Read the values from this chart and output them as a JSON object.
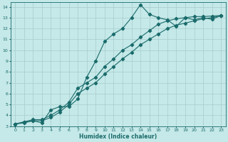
{
  "xlabel": "Humidex (Indice chaleur)",
  "bg_color": "#c5e8e8",
  "grid_color": "#a8cccc",
  "line_color": "#1a6b6b",
  "xlim": [
    -0.5,
    23.5
  ],
  "ylim": [
    3,
    14.4
  ],
  "xticks": [
    0,
    1,
    2,
    3,
    4,
    5,
    6,
    7,
    8,
    9,
    10,
    11,
    12,
    13,
    14,
    15,
    16,
    17,
    18,
    19,
    20,
    21,
    22,
    23
  ],
  "yticks": [
    3,
    4,
    5,
    6,
    7,
    8,
    9,
    10,
    11,
    12,
    13,
    14
  ],
  "line1_x": [
    0,
    1,
    2,
    3,
    4,
    5,
    6,
    7,
    8,
    9,
    10,
    11,
    12,
    13,
    14,
    15,
    16,
    17,
    18,
    19,
    20,
    21,
    22,
    23
  ],
  "line1_y": [
    3.2,
    3.35,
    3.5,
    3.3,
    4.5,
    4.8,
    4.8,
    5.5,
    7.5,
    9.0,
    10.8,
    11.5,
    12.0,
    13.0,
    14.2,
    13.3,
    13.0,
    12.8,
    12.2,
    13.0,
    12.8,
    13.0,
    12.85,
    13.2
  ],
  "line2_x": [
    0,
    1,
    2,
    3,
    4,
    5,
    6,
    7,
    8,
    9,
    10,
    11,
    12,
    13,
    14,
    15,
    16,
    17,
    18,
    19,
    20,
    21,
    22,
    23
  ],
  "line2_y": [
    3.2,
    3.4,
    3.6,
    3.6,
    4.0,
    4.5,
    5.2,
    6.5,
    7.0,
    7.5,
    8.5,
    9.2,
    10.0,
    10.5,
    11.2,
    11.8,
    12.4,
    12.7,
    12.9,
    13.0,
    13.1,
    13.1,
    13.15,
    13.2
  ],
  "line3_x": [
    0,
    1,
    2,
    3,
    4,
    5,
    6,
    7,
    8,
    9,
    10,
    11,
    12,
    13,
    14,
    15,
    16,
    17,
    18,
    19,
    20,
    21,
    22,
    23
  ],
  "line3_y": [
    3.2,
    3.3,
    3.5,
    3.5,
    3.8,
    4.3,
    5.0,
    6.0,
    6.5,
    7.0,
    7.8,
    8.5,
    9.2,
    9.8,
    10.5,
    11.0,
    11.5,
    12.0,
    12.3,
    12.5,
    12.7,
    12.9,
    13.0,
    13.2
  ]
}
